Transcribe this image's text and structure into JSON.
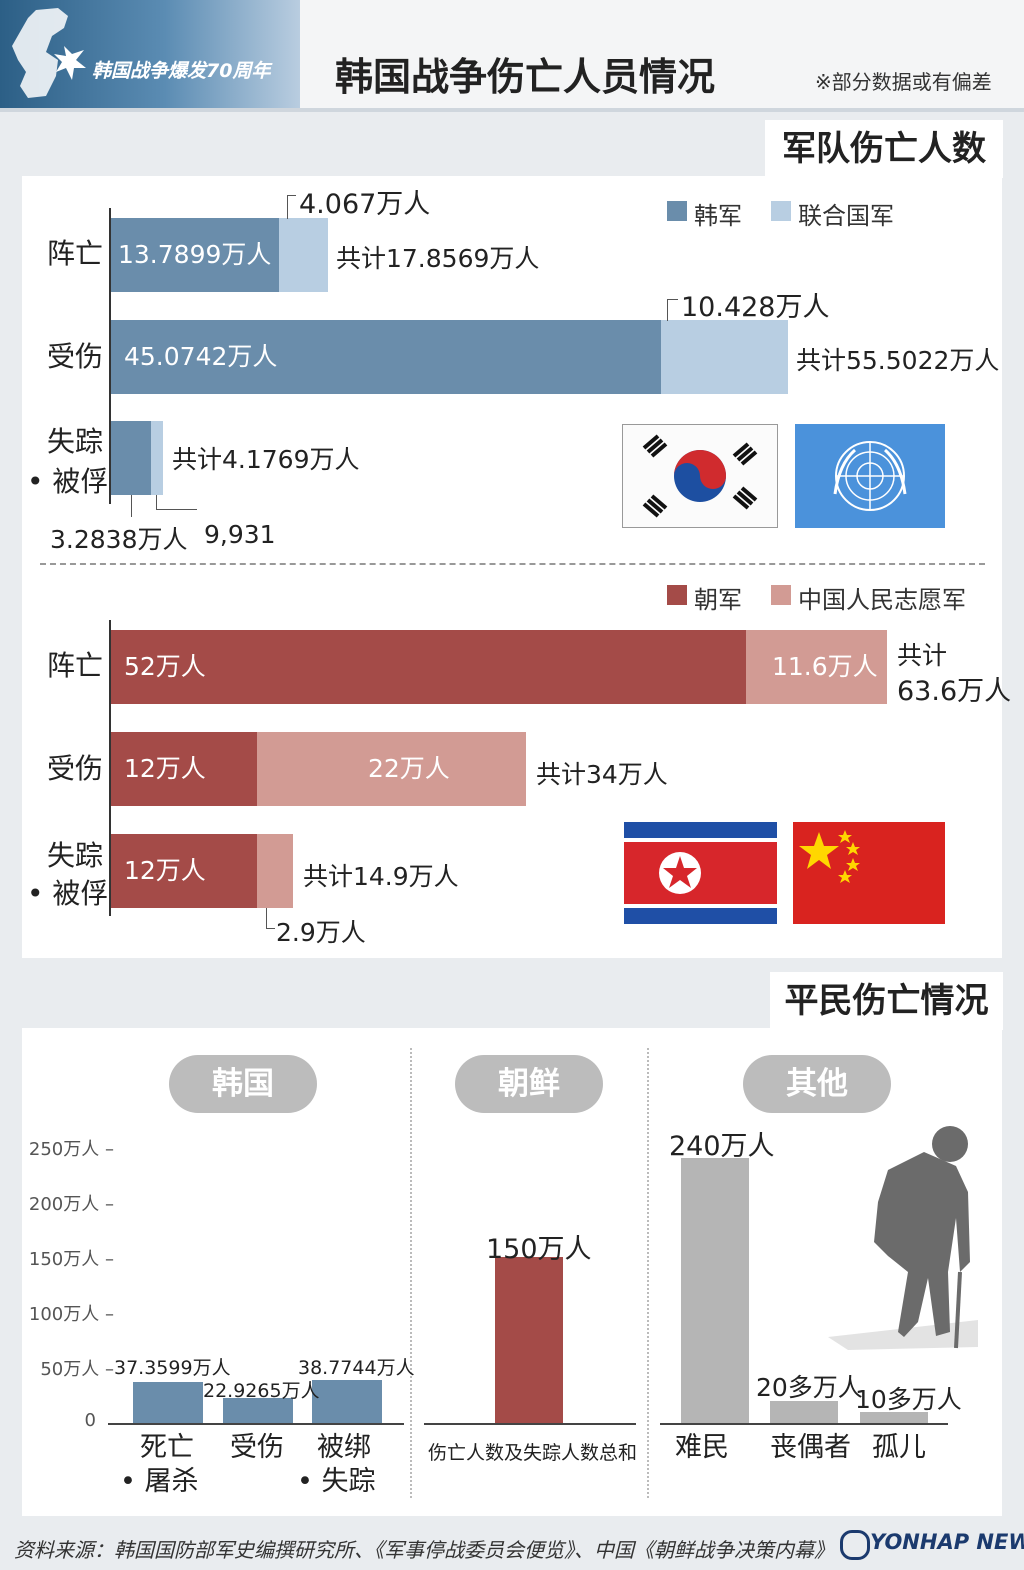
{
  "header": {
    "subtitle": "韩国战争爆发70周年",
    "title": "韩国战争伤亡人员情况",
    "note": "※部分数据或有偏差"
  },
  "military": {
    "section_title": "军队伤亡人数",
    "south": {
      "legend": [
        "韩军",
        "联合国军"
      ],
      "rows": [
        {
          "label": "阵亡",
          "a_label": "13.7899万人",
          "b_label": "4.067万人",
          "total": "共计17.8569万人"
        },
        {
          "label": "受伤",
          "a_label": "45.0742万人",
          "b_label": "10.428万人",
          "total": "共计55.5022万人"
        },
        {
          "label_line1": "失踪",
          "label_line2": "• 被俘",
          "a_label": "3.2838万人",
          "b_label": "9,931",
          "total": "共计4.1769万人"
        }
      ]
    },
    "north": {
      "legend": [
        "朝军",
        "中国人民志愿军"
      ],
      "rows": [
        {
          "label": "阵亡",
          "a_label": "52万人",
          "b_label": "11.6万人",
          "total_line1": "共计",
          "total_line2": "63.6万人"
        },
        {
          "label": "受伤",
          "a_label": "12万人",
          "b_label": "22万人",
          "total": "共计34万人"
        },
        {
          "label_line1": "失踪",
          "label_line2": "• 被俘",
          "a_label": "12万人",
          "b_label": "2.9万人",
          "total": "共计14.9万人"
        }
      ]
    }
  },
  "civilian": {
    "section_title": "平民伤亡情况",
    "groups": [
      "韩国",
      "朝鲜",
      "其他"
    ],
    "yticks": [
      "250万人",
      "200万人",
      "150万人",
      "100万人",
      "50万人",
      "0"
    ],
    "korea_values": [
      "37.3599万人",
      "22.9265万人",
      "38.7744万人"
    ],
    "korea_cats": [
      {
        "line1": "死亡",
        "line2": "• 屠杀"
      },
      {
        "line1": "受伤",
        "line2": ""
      },
      {
        "line1": "被绑",
        "line2": "• 失踪"
      }
    ],
    "nk_value": "150万人",
    "nk_cat": "伤亡人数及失踪人数总和",
    "other_values": [
      "240万人",
      "20多万人",
      "10多万人"
    ],
    "other_cats": [
      "难民",
      "丧偶者",
      "孤儿"
    ]
  },
  "footer": {
    "source": "资料来源：韩国国防部军史编撰研究所、《军事停战委员会便览》、中国《朝鲜战争决策内幕》",
    "logo": "YONHAP NEWS"
  },
  "colors": {
    "south_a": "#6a8dab",
    "south_b": "#b8cee2",
    "north_a": "#a44b48",
    "north_b": "#d29b94",
    "civ_gray": "#b5b5b5",
    "civ_red": "#a44b48"
  },
  "chart_data": [
    {
      "type": "bar",
      "title": "军队伤亡人数",
      "categories": [
        "阵亡",
        "受伤",
        "失踪•被俘"
      ],
      "series": [
        {
          "name": "韩军",
          "values": [
            13.7899,
            45.0742,
            3.2838
          ]
        },
        {
          "name": "联合国军",
          "values": [
            4.067,
            10.428,
            0.9931
          ]
        }
      ],
      "totals": [
        17.8569,
        55.5022,
        4.1769
      ]
    },
    {
      "type": "bar",
      "categories": [
        "阵亡",
        "受伤",
        "失踪•被俘"
      ],
      "series": [
        {
          "name": "朝军",
          "values": [
            52,
            12,
            12
          ]
        },
        {
          "name": "中国人民志愿军",
          "values": [
            11.6,
            22,
            2.9
          ]
        }
      ],
      "totals": [
        63.6,
        34,
        14.9
      ]
    },
    {
      "type": "bar",
      "title": "平民伤亡情况",
      "groups": [
        "韩国",
        "朝鲜",
        "其他"
      ],
      "categories": [
        "死亡•屠杀",
        "受伤",
        "被绑•失踪",
        "伤亡人数及失踪人数总和",
        "难民",
        "丧偶者",
        "孤儿"
      ],
      "values": [
        37.3599,
        22.9265,
        38.7744,
        150,
        240,
        20,
        10
      ],
      "ylim": [
        0,
        250
      ]
    }
  ]
}
